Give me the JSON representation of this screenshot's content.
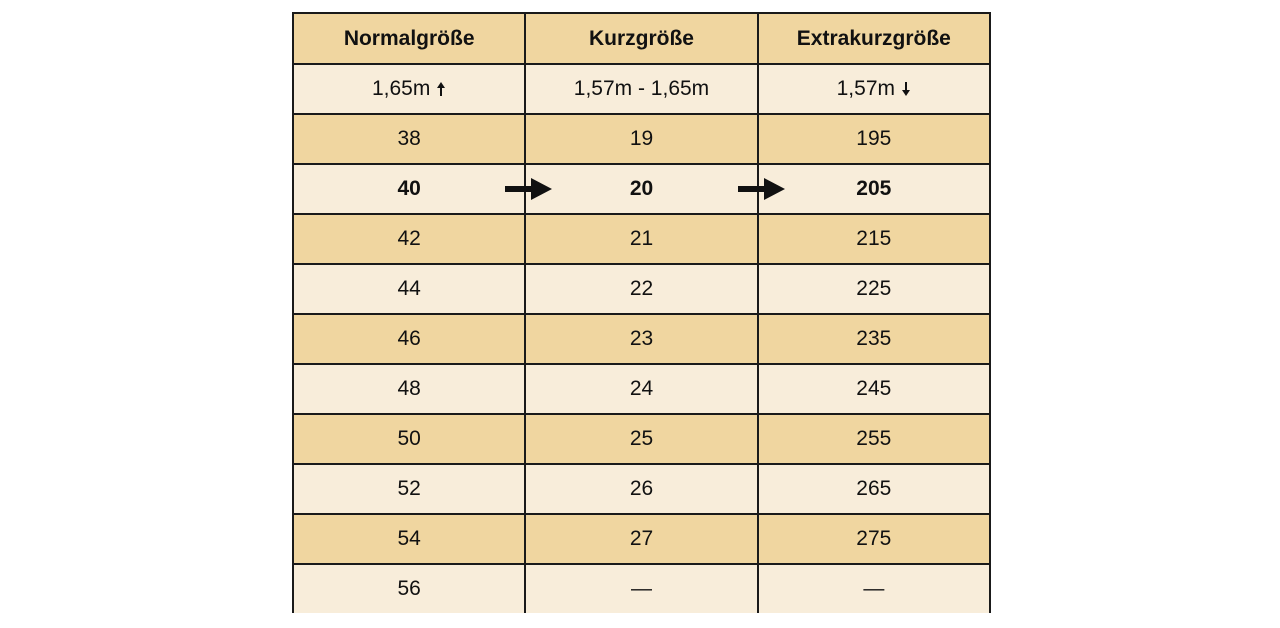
{
  "headers": [
    "Normalgröße",
    "Kurzgröße",
    "Extrakurzgröße"
  ],
  "height_row": [
    "1,65m",
    "1,57m - 1,65m",
    "1,57m"
  ],
  "height_icons": [
    "arrow-up-icon",
    null,
    "arrow-down-icon"
  ],
  "rows": [
    [
      "38",
      "19",
      "195"
    ],
    [
      "40",
      "20",
      "205"
    ],
    [
      "42",
      "21",
      "215"
    ],
    [
      "44",
      "22",
      "225"
    ],
    [
      "46",
      "23",
      "235"
    ],
    [
      "48",
      "24",
      "245"
    ],
    [
      "50",
      "25",
      "255"
    ],
    [
      "52",
      "26",
      "265"
    ],
    [
      "54",
      "27",
      "275"
    ],
    [
      "56",
      "—",
      "—"
    ]
  ],
  "highlighted_row_index": 1,
  "colors": {
    "dark_row": "#f0d6a0",
    "light_row": "#f8edda",
    "border": "#1a1a1a"
  }
}
